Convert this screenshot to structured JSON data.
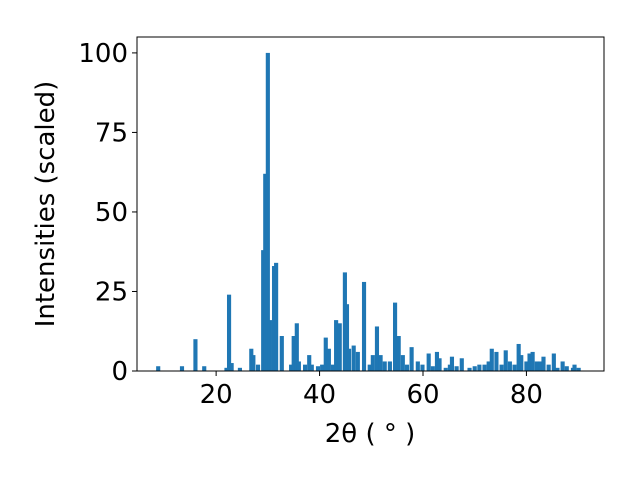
{
  "chart_data": {
    "type": "bar",
    "x_label": "2θ ( ° )",
    "y_label": "Intensities (scaled)",
    "color": "#1f77b4",
    "x": [
      8.8,
      13.4,
      16,
      17.7,
      22,
      22.5,
      23,
      24.6,
      26.8,
      27.2,
      28.1,
      29.1,
      29.5,
      30,
      30.4,
      31.2,
      31.6,
      32.7,
      34.5,
      35,
      35.6,
      36,
      37.2,
      38,
      38.5,
      39.7,
      40.5,
      41.2,
      41.8,
      42.6,
      43.2,
      43.9,
      44.9,
      45.3,
      45.7,
      46.6,
      47.4,
      48.6,
      49.7,
      50.3,
      51.1,
      51.8,
      52.6,
      53.6,
      54.6,
      55.3,
      56.1,
      56.9,
      57.8,
      59,
      59.9,
      61.1,
      61.9,
      62.7,
      63.2,
      64.4,
      65.2,
      65.6,
      66.5,
      67.5,
      69,
      70,
      70.9,
      71.9,
      72.7,
      73.3,
      74.2,
      75.2,
      76,
      76.8,
      77.7,
      78.5,
      79,
      80,
      80.6,
      81.2,
      82,
      82.7,
      83.3,
      84.3,
      85.3,
      86,
      87,
      87.8,
      89,
      89.3,
      90.1
    ],
    "values": [
      1.5,
      1.5,
      10,
      1.5,
      1,
      24,
      2.5,
      1,
      7,
      5,
      2,
      38,
      62,
      100,
      16,
      33,
      34,
      11,
      2,
      11,
      15,
      3,
      2,
      5,
      2,
      1.5,
      2,
      10.5,
      7,
      2,
      16,
      15,
      31,
      21,
      7,
      8,
      6,
      28,
      2,
      5,
      14,
      5,
      3,
      3,
      21.5,
      11,
      5,
      2,
      7.5,
      3,
      2,
      5.5,
      1.5,
      6,
      4,
      1,
      2,
      4.5,
      1.5,
      4,
      1,
      1.5,
      2,
      2,
      3,
      7,
      6,
      2,
      6.5,
      3,
      2,
      8.5,
      5,
      3,
      5.5,
      6,
      3,
      3,
      4.5,
      2,
      5.5,
      1,
      3,
      1.5,
      1,
      2,
      1
    ],
    "xlim": [
      4.7,
      95
    ],
    "ylim": [
      0,
      105
    ],
    "xticks": [
      20,
      40,
      60,
      80
    ],
    "yticks": [
      0,
      25,
      50,
      75,
      100
    ]
  }
}
